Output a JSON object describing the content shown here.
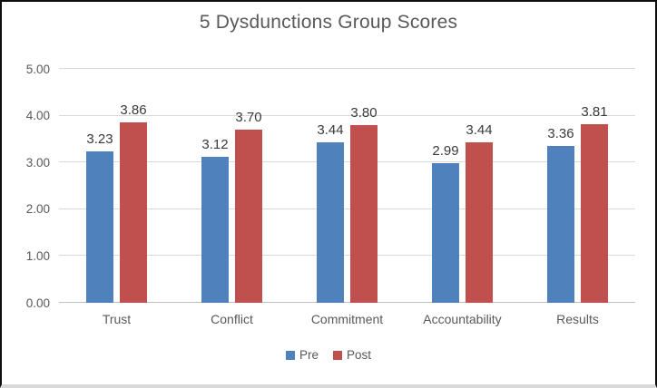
{
  "chart_data": {
    "type": "bar",
    "title": "5 Dysdunctions Group Scores",
    "categories": [
      "Trust",
      "Conflict",
      "Commitment",
      "Accountability",
      "Results"
    ],
    "series": [
      {
        "name": "Pre",
        "color": "#4F81BD",
        "values": [
          3.23,
          3.12,
          3.44,
          2.99,
          3.36
        ]
      },
      {
        "name": "Post",
        "color": "#C0504D",
        "values": [
          3.86,
          3.7,
          3.8,
          3.44,
          3.81
        ]
      }
    ],
    "ylim": [
      0,
      5
    ],
    "yticks": [
      "0.00",
      "1.00",
      "2.00",
      "3.00",
      "4.00",
      "5.00"
    ],
    "value_format": "0.00",
    "grid": true,
    "legend_position": "bottom",
    "data_labels": true
  }
}
